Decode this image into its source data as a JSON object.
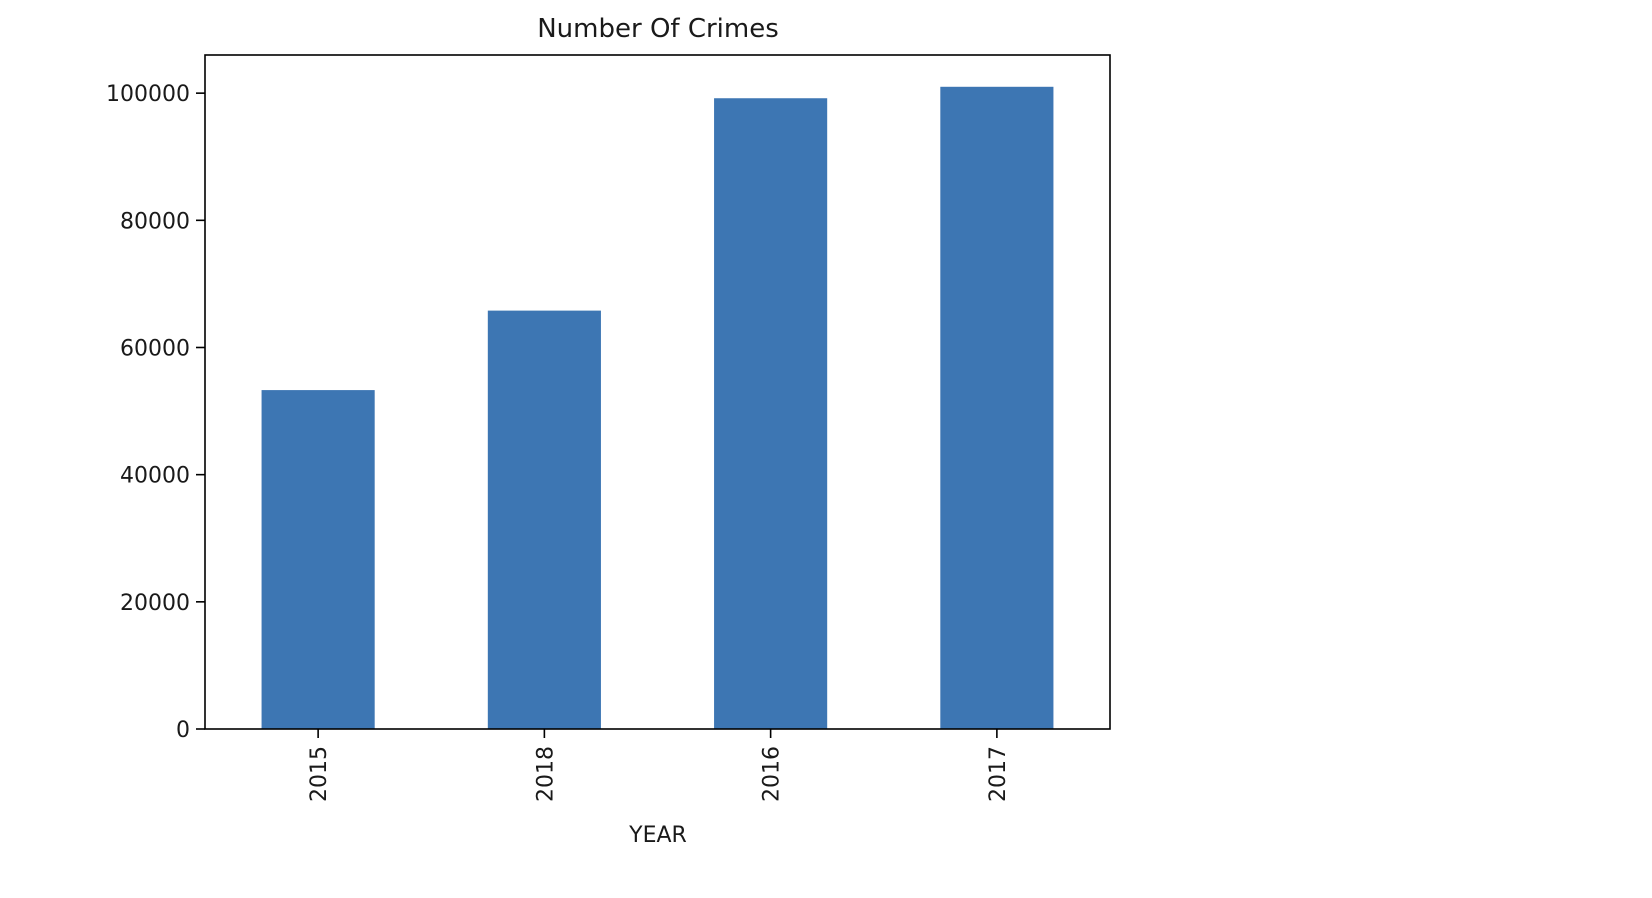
{
  "chart_data": {
    "type": "bar",
    "title": "Number Of Crimes",
    "xlabel": "YEAR",
    "ylabel": "",
    "categories": [
      "2015",
      "2018",
      "2016",
      "2017"
    ],
    "values": [
      53300,
      65800,
      99200,
      101000
    ],
    "ylim": [
      0,
      106000
    ],
    "yticks": [
      0,
      20000,
      40000,
      60000,
      80000,
      100000
    ],
    "grid": false,
    "legend": "none",
    "bar_color": "#3d76b3",
    "x_tick_rotation": "vertical"
  }
}
